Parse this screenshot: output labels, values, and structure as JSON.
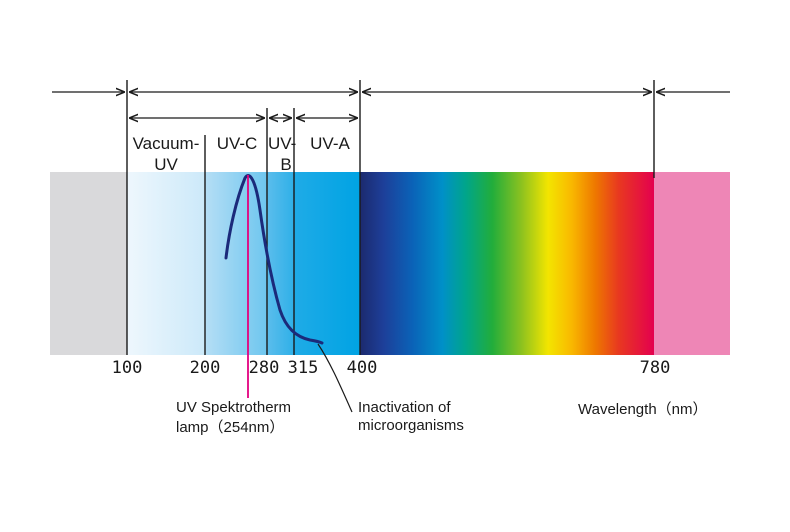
{
  "bands": {
    "vacuum_uv_line1": "Vacuum-",
    "vacuum_uv_line2": "UV",
    "uv_c": "UV-C",
    "uv_b_line1": "UV-",
    "uv_b_line2": "B",
    "uv_a": "UV-A"
  },
  "ticks": {
    "t100": "100",
    "t200": "200",
    "t280": "280",
    "t315": "315",
    "t400": "400",
    "t780": "780"
  },
  "annotations": {
    "lamp_line1": "UV Spektrotherm",
    "lamp_line2": "lamp（254nm）",
    "inactivation_line1": "Inactivation  of",
    "inactivation_line2": "microorganisms",
    "wavelength": "Wavelength（nm）"
  },
  "colors": {
    "background_region": "#d9d9db",
    "uv_dark_blue": "#00a6e4",
    "infrared_pink": "#ee86b6",
    "curve": "#1b2a7a",
    "lamp_line": "#e4007f"
  }
}
